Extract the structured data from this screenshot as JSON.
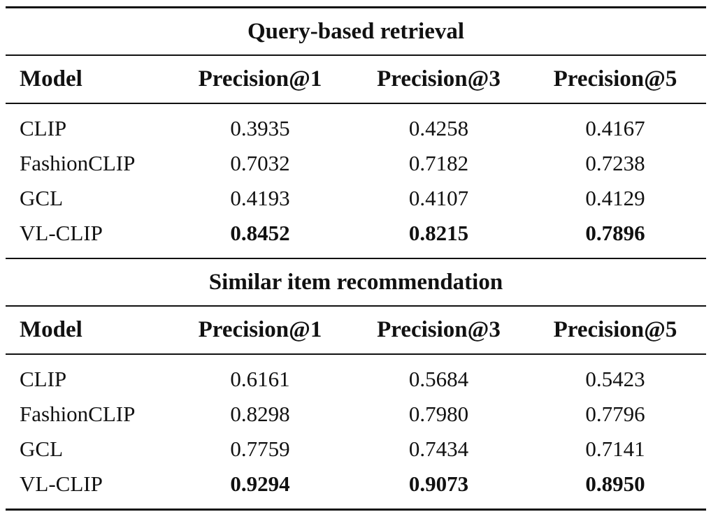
{
  "sections": [
    {
      "title": "Query-based retrieval",
      "headers": [
        "Model",
        "Precision@1",
        "Precision@3",
        "Precision@5"
      ],
      "rows": [
        {
          "model": "CLIP",
          "p1": "0.3935",
          "p3": "0.4258",
          "p5": "0.4167"
        },
        {
          "model": "FashionCLIP",
          "p1": "0.7032",
          "p3": "0.7182",
          "p5": "0.7238"
        },
        {
          "model": "GCL",
          "p1": "0.4193",
          "p3": "0.4107",
          "p5": "0.4129"
        },
        {
          "model": "VL-CLIP",
          "p1": "0.8452",
          "p3": "0.8215",
          "p5": "0.7896",
          "bold": true
        }
      ]
    },
    {
      "title": "Similar item recommendation",
      "headers": [
        "Model",
        "Precision@1",
        "Precision@3",
        "Precision@5"
      ],
      "rows": [
        {
          "model": "CLIP",
          "p1": "0.6161",
          "p3": "0.5684",
          "p5": "0.5423"
        },
        {
          "model": "FashionCLIP",
          "p1": "0.8298",
          "p3": "0.7980",
          "p5": "0.7796"
        },
        {
          "model": "GCL",
          "p1": "0.7759",
          "p3": "0.7434",
          "p5": "0.7141"
        },
        {
          "model": "VL-CLIP",
          "p1": "0.9294",
          "p3": "0.9073",
          "p5": "0.8950",
          "bold": true
        }
      ]
    }
  ]
}
